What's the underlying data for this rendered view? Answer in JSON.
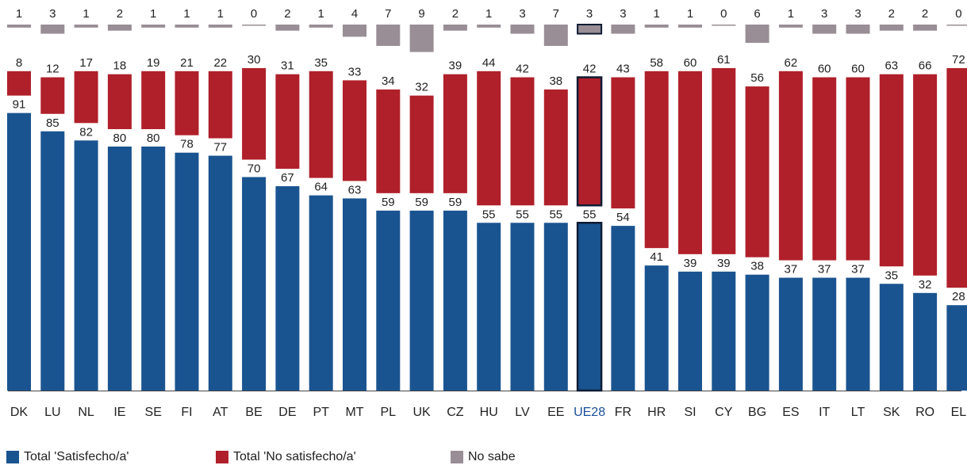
{
  "chart_data": {
    "type": "bar",
    "stacked": true,
    "categories": [
      "DK",
      "LU",
      "NL",
      "IE",
      "SE",
      "FI",
      "AT",
      "BE",
      "DE",
      "PT",
      "MT",
      "PL",
      "UK",
      "CZ",
      "HU",
      "LV",
      "EE",
      "UE28",
      "FR",
      "HR",
      "SI",
      "CY",
      "BG",
      "ES",
      "IT",
      "LT",
      "SK",
      "RO",
      "EL"
    ],
    "highlight_category": "UE28",
    "series": [
      {
        "name": "Total 'Satisfecho/a'",
        "color": "#1a5490",
        "values": [
          91,
          85,
          82,
          80,
          80,
          78,
          77,
          70,
          67,
          64,
          63,
          59,
          59,
          59,
          55,
          55,
          55,
          55,
          54,
          41,
          39,
          39,
          38,
          37,
          37,
          37,
          35,
          32,
          28
        ]
      },
      {
        "name": "Total 'No satisfecho/a'",
        "color": "#b0202a",
        "values": [
          8,
          12,
          17,
          18,
          19,
          21,
          22,
          30,
          31,
          35,
          33,
          34,
          32,
          39,
          44,
          42,
          38,
          42,
          43,
          58,
          60,
          61,
          56,
          62,
          60,
          60,
          63,
          66,
          72
        ]
      },
      {
        "name": "No sabe",
        "color": "#998e95",
        "values": [
          1,
          3,
          1,
          2,
          1,
          1,
          1,
          0,
          2,
          1,
          4,
          7,
          9,
          2,
          1,
          3,
          7,
          3,
          3,
          1,
          1,
          0,
          6,
          1,
          3,
          3,
          2,
          2,
          0
        ]
      }
    ],
    "legend_position": "bottom-left",
    "grid": false
  }
}
